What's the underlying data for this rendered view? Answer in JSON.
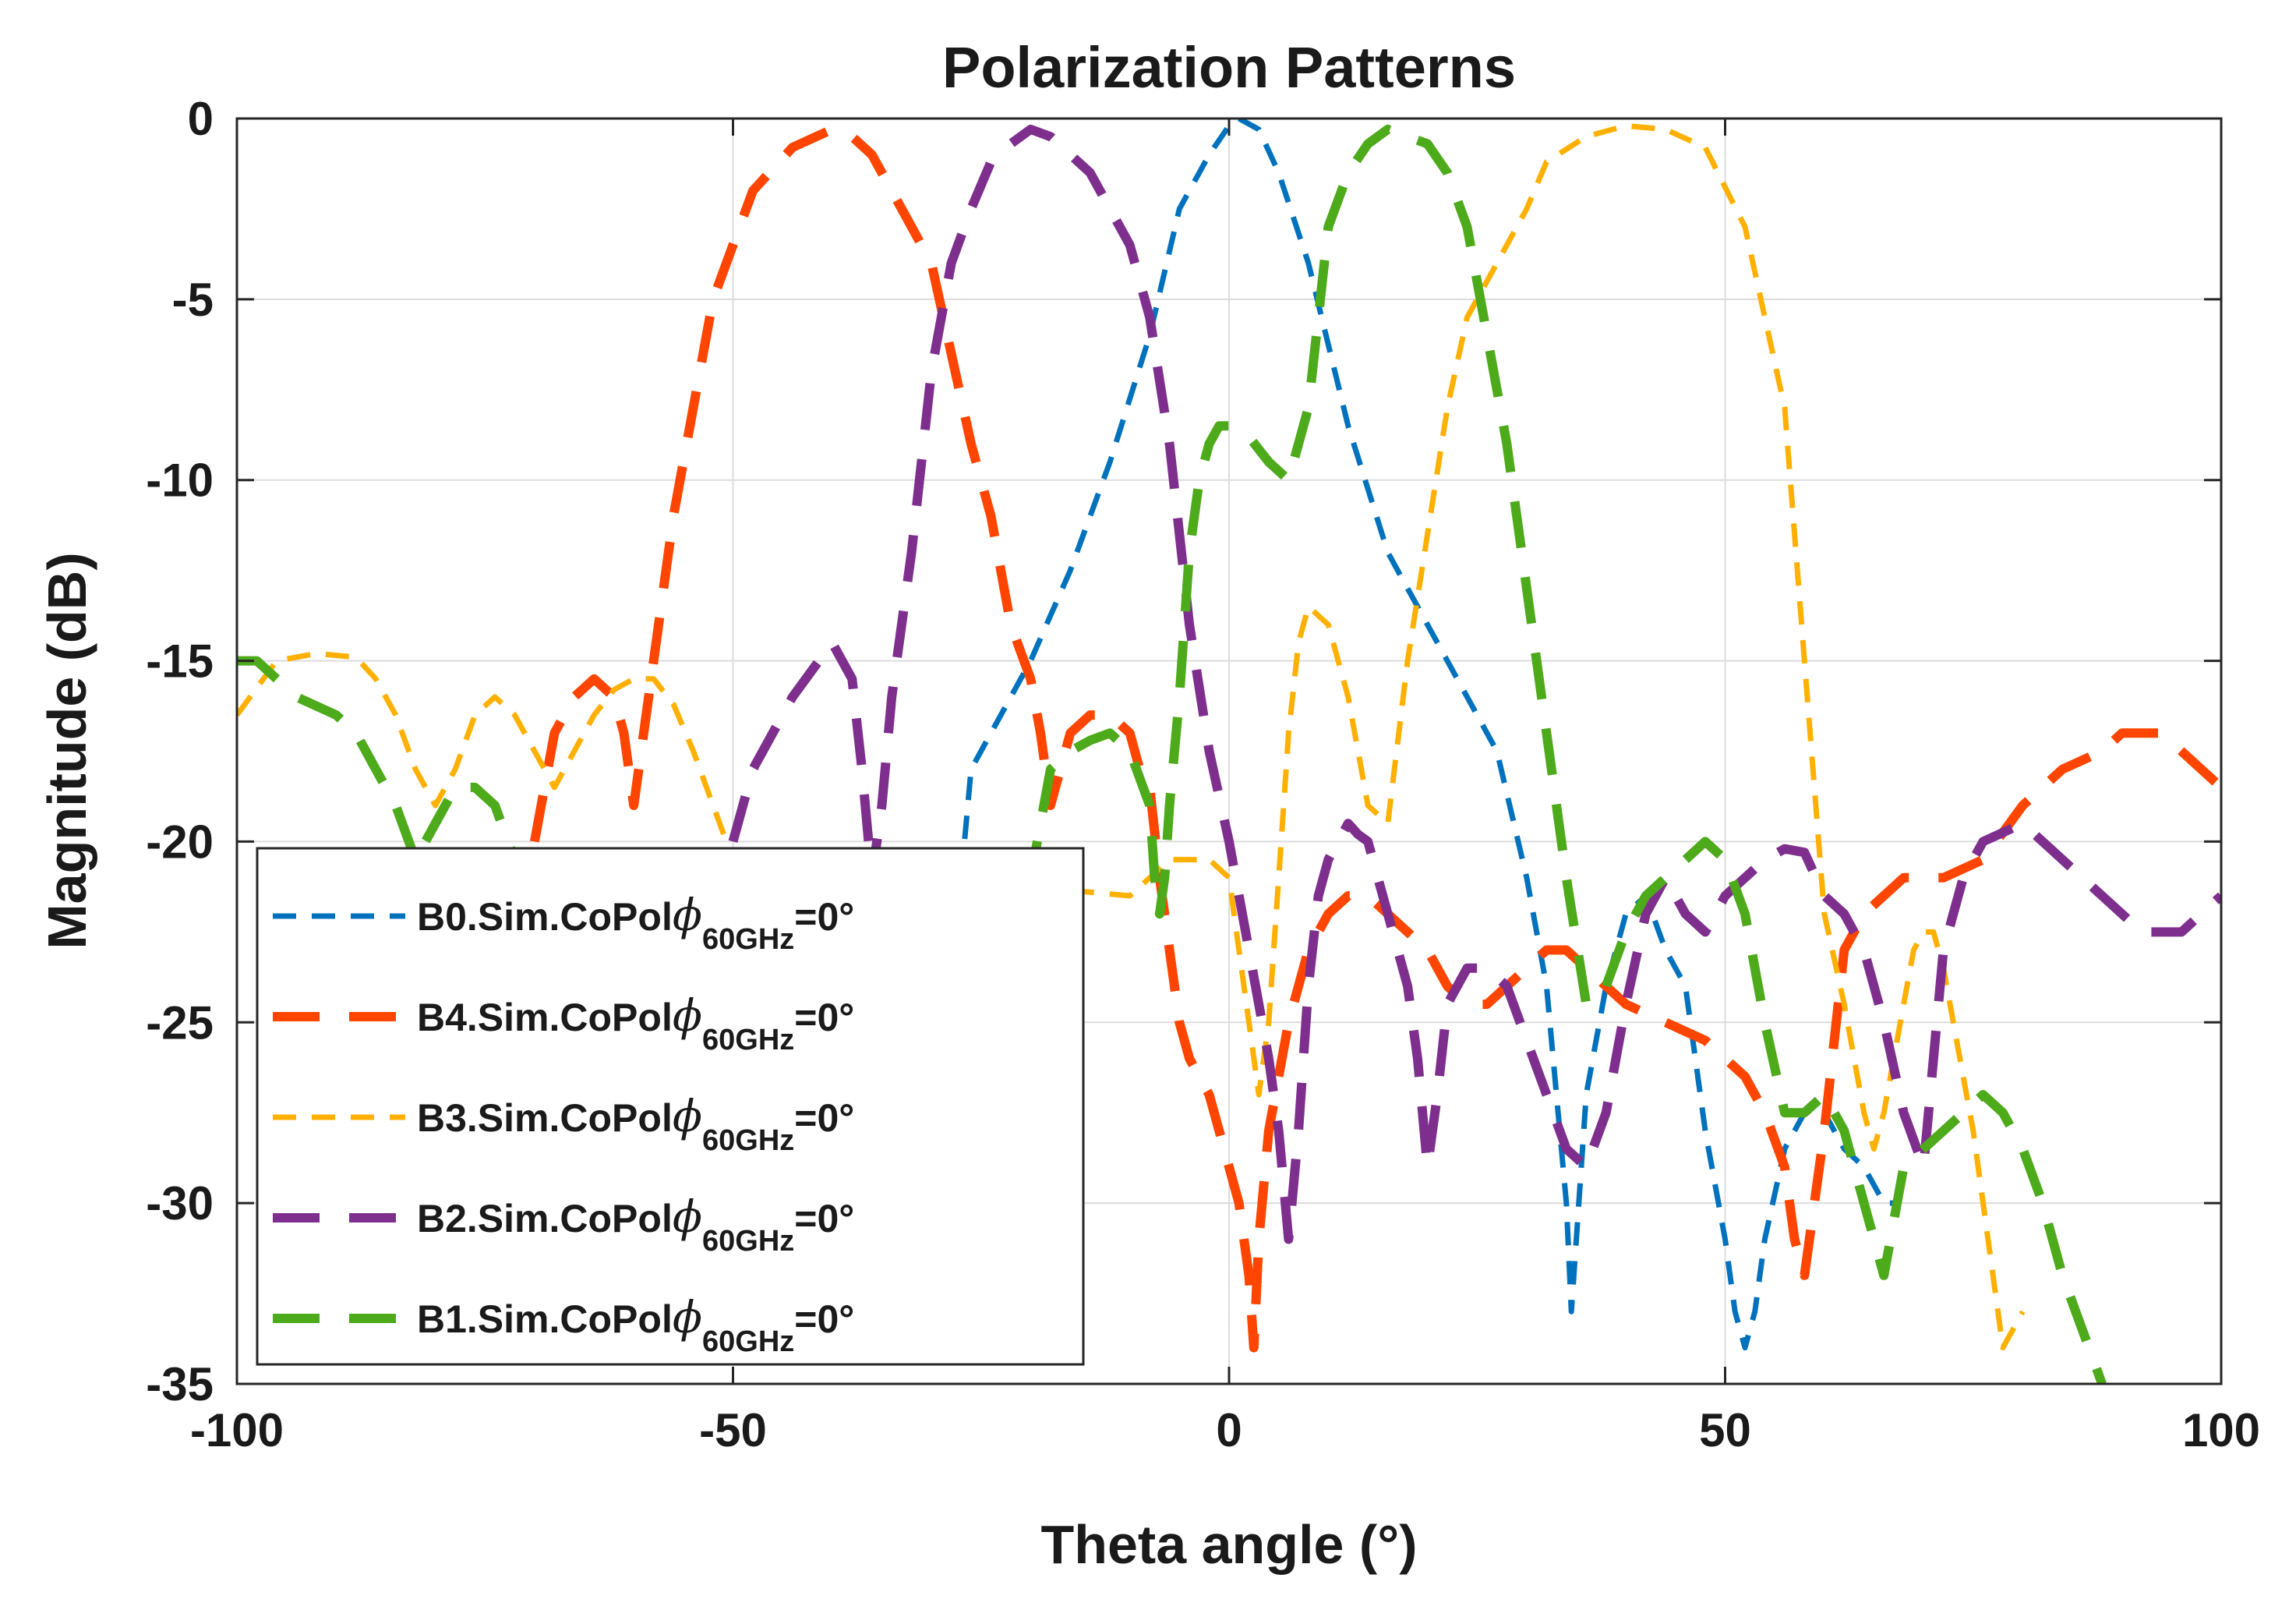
{
  "chart_data": {
    "type": "line",
    "title": "Polarization Patterns",
    "xlabel": "Theta angle (°)",
    "ylabel": "Magnitude (dB)",
    "xlim": [
      -100,
      100
    ],
    "ylim": [
      -35,
      0
    ],
    "xticks": [
      -100,
      -50,
      0,
      50,
      100
    ],
    "yticks": [
      0,
      -5,
      -10,
      -15,
      -20,
      -25,
      -30,
      -35
    ],
    "xtick_labels": [
      "-100",
      "-50",
      "0",
      "50",
      "100"
    ],
    "ytick_labels": [
      "0",
      "-5",
      "-10",
      "-15",
      "-20",
      "-25",
      "-30",
      "-35"
    ],
    "grid": true,
    "legend_position": "bottom-left",
    "series": [
      {
        "name": "B0.Sim.CoPolϕ60GHz=0°",
        "label_main": "B0.Sim.CoPol",
        "label_sub": "60GHz",
        "label_end": "=0°",
        "color": "#0072BD",
        "style": "short-dash",
        "x": [
          -27,
          -26,
          -24,
          -20,
          -16,
          -12,
          -8,
          -5,
          -2,
          0,
          1,
          3,
          5,
          8,
          12,
          16,
          20,
          24,
          27,
          30,
          32,
          33,
          34,
          34.5,
          35,
          36,
          38,
          40,
          42,
          44,
          46,
          48,
          50,
          51,
          52,
          53,
          54,
          56,
          58,
          60,
          62,
          64,
          66,
          67
        ],
        "y": [
          -21,
          -18,
          -17,
          -15,
          -12.5,
          -9.5,
          -6,
          -2.5,
          -1,
          -0.2,
          0,
          -0.3,
          -1.5,
          -4,
          -8.5,
          -12,
          -14,
          -16,
          -17.5,
          -21,
          -24,
          -27,
          -30,
          -33,
          -31,
          -27,
          -24,
          -22,
          -21.5,
          -23,
          -24,
          -28,
          -31,
          -33,
          -34,
          -33,
          -31,
          -28.5,
          -27.5,
          -27.5,
          -28.5,
          -29,
          -30,
          -30
        ]
      },
      {
        "name": "B4.Sim.CoPolϕ60GHz=0°",
        "label_main": "B4.Sim.CoPol",
        "label_sub": "60GHz",
        "label_end": "=0°",
        "color": "#FF4500",
        "style": "long-dash",
        "x": [
          -70,
          -68,
          -66,
          -64,
          -62,
          -61,
          -60,
          -59,
          -58,
          -56,
          -52,
          -48,
          -44,
          -40,
          -38,
          -36,
          -34,
          -30,
          -26,
          -24,
          -22,
          -20,
          -19,
          -18,
          -16,
          -14,
          -12,
          -10,
          -9,
          -8,
          -7,
          -6,
          -5,
          -4,
          -3,
          -2,
          -1,
          0,
          1,
          2,
          2.5,
          3,
          4,
          6,
          8,
          10,
          12,
          14,
          16,
          18,
          20,
          22,
          24,
          26,
          28,
          30,
          32,
          34,
          36,
          40,
          44,
          48,
          52,
          54,
          56,
          57,
          58,
          60,
          62,
          64,
          68,
          72,
          76,
          80,
          84,
          88,
          90,
          94,
          98,
          100
        ],
        "y": [
          -20,
          -17,
          -16,
          -15.5,
          -16,
          -17,
          -19,
          -17,
          -15,
          -11,
          -5,
          -2,
          -0.8,
          -0.3,
          -0.5,
          -1,
          -2,
          -4,
          -9,
          -11,
          -14,
          -15.5,
          -17,
          -19,
          -17,
          -16.5,
          -16.5,
          -17,
          -18,
          -18.5,
          -21,
          -23,
          -25,
          -26,
          -26.5,
          -27,
          -28,
          -29,
          -30,
          -32,
          -34,
          -31,
          -28,
          -25,
          -23,
          -22,
          -21.5,
          -21.5,
          -22,
          -22.5,
          -23,
          -24,
          -24.5,
          -24.5,
          -24,
          -23.5,
          -23,
          -23,
          -23.5,
          -24.5,
          -25,
          -25.5,
          -26.5,
          -27.5,
          -29,
          -31,
          -32,
          -28,
          -23,
          -22,
          -21,
          -21,
          -20.5,
          -19,
          -18,
          -17.5,
          -17,
          -17,
          -18,
          -18.5
        ]
      },
      {
        "name": "B3.Sim.CoPolϕ60GHz=0°",
        "label_main": "B3.Sim.CoPol",
        "label_sub": "60GHz",
        "label_end": "=0°",
        "color": "#FFB000",
        "style": "short-dash",
        "x": [
          -100,
          -96,
          -92,
          -88,
          -86,
          -84,
          -82,
          -80,
          -78,
          -76,
          -74,
          -72,
          -70,
          -68,
          -66,
          -64,
          -62,
          -60,
          -58,
          -56,
          -54,
          -52,
          -50,
          -10,
          -8,
          -6,
          -4,
          -2,
          0,
          1,
          2,
          3,
          4,
          5,
          6,
          7,
          8,
          10,
          12,
          14,
          16,
          18,
          20,
          22,
          24,
          26,
          28,
          30,
          32,
          36,
          40,
          44,
          48,
          52,
          56,
          58,
          60,
          62,
          63,
          64,
          65,
          66,
          67,
          68,
          69,
          70,
          71,
          72,
          73,
          74,
          75,
          76,
          77,
          78,
          79,
          80
        ],
        "y": [
          -16.5,
          -15,
          -14.8,
          -14.9,
          -15.5,
          -16.5,
          -18,
          -19,
          -18,
          -16.5,
          -16,
          -16.5,
          -17.5,
          -18.5,
          -17.5,
          -16.5,
          -15.8,
          -15.5,
          -15.5,
          -16.2,
          -17.5,
          -19,
          -20.5,
          -21.5,
          -21,
          -20.5,
          -20.5,
          -20.5,
          -21,
          -23,
          -25,
          -27,
          -25,
          -21,
          -17,
          -14.5,
          -13.5,
          -14,
          -16,
          -19,
          -19.5,
          -15,
          -11.5,
          -8,
          -5.5,
          -4.5,
          -3.5,
          -2.5,
          -1.2,
          -0.5,
          -0.2,
          -0.3,
          -0.8,
          -3,
          -8,
          -15,
          -22,
          -24.5,
          -26,
          -27.5,
          -28.5,
          -27.5,
          -26,
          -24.5,
          -23,
          -22.5,
          -22.5,
          -23.5,
          -25,
          -26.5,
          -28,
          -30,
          -32,
          -34,
          -33.5,
          -33
        ]
      },
      {
        "name": "B2.Sim.CoPolϕ60GHz=0°",
        "label_main": "B2.Sim.CoPol",
        "label_sub": "60GHz",
        "label_end": "=0°",
        "color": "#7E2F8E",
        "style": "long-dash",
        "x": [
          -50,
          -48,
          -44,
          -40,
          -38,
          -37,
          -36,
          -35,
          -34,
          -33,
          -32,
          -30,
          -28,
          -26,
          -24,
          -22,
          -20,
          -18,
          -14,
          -12,
          -10,
          -8,
          -6,
          -4,
          -2,
          0,
          2,
          4,
          5,
          6,
          7,
          8,
          9,
          10,
          11,
          12,
          13,
          14,
          15,
          16,
          17,
          18,
          19,
          20,
          21,
          22,
          24,
          26,
          28,
          30,
          32,
          34,
          36,
          38,
          40,
          42,
          44,
          46,
          48,
          50,
          52,
          54,
          56,
          58,
          60,
          62,
          64,
          66,
          68,
          70,
          72,
          74,
          76,
          80,
          84,
          88,
          92,
          96,
          100
        ],
        "y": [
          -20,
          -18,
          -16,
          -14.5,
          -15.5,
          -18,
          -21,
          -19,
          -16,
          -14,
          -12,
          -7,
          -4,
          -2.5,
          -1.2,
          -0.7,
          -0.3,
          -0.5,
          -1.5,
          -2.5,
          -3.5,
          -5.5,
          -9,
          -14,
          -17.5,
          -20,
          -23,
          -26,
          -28,
          -31,
          -28,
          -24,
          -21.5,
          -20.5,
          -20,
          -19.5,
          -19.8,
          -20,
          -21,
          -22,
          -23,
          -24,
          -26,
          -29,
          -27,
          -24.5,
          -23.5,
          -23.5,
          -24,
          -25.5,
          -27,
          -28.5,
          -29,
          -27.5,
          -24.5,
          -22,
          -21,
          -22,
          -22.5,
          -21.5,
          -21,
          -20.5,
          -20.2,
          -20.3,
          -21.5,
          -22,
          -23,
          -25,
          -27.5,
          -29,
          -23,
          -21,
          -20,
          -19.5,
          -20.5,
          -21.5,
          -22.5,
          -22.5,
          -21.5
        ]
      },
      {
        "name": "B1.Sim.CoPolϕ60GHz=0°",
        "label_main": "B1.Sim.CoPol",
        "label_sub": "60GHz",
        "label_end": "=0°",
        "color": "#4DAA1A",
        "style": "long-dash",
        "x": [
          -100,
          -98,
          -94,
          -90,
          -88,
          -86,
          -84,
          -82,
          -80,
          -78,
          -76,
          -74,
          -72,
          -70,
          -66,
          -62,
          -60,
          -58,
          -54,
          -48,
          -40,
          -32,
          -24,
          -20,
          -18,
          -16,
          -14,
          -12,
          -10,
          -8,
          -7.5,
          -7,
          -6.5,
          -6,
          -5,
          -4,
          -3,
          -2,
          -1,
          0,
          2,
          4,
          6,
          8,
          10,
          12,
          14,
          16,
          18,
          20,
          22,
          24,
          26,
          28,
          30,
          32,
          34,
          36,
          38,
          40,
          42,
          44,
          46,
          48,
          50,
          52,
          54,
          56,
          58,
          60,
          62,
          64,
          66,
          68,
          70,
          72,
          74,
          76,
          78,
          80,
          82,
          84,
          86,
          88
        ],
        "y": [
          -15,
          -15,
          -16,
          -16.5,
          -17,
          -18,
          -19,
          -20.5,
          -19.5,
          -18.5,
          -18.5,
          -19,
          -20.5,
          -22,
          -24,
          -25,
          -26,
          -27,
          -28,
          -29,
          -30,
          -30,
          -25,
          -21,
          -18,
          -17.5,
          -17.2,
          -17,
          -17.5,
          -19,
          -21,
          -22,
          -21,
          -19,
          -16,
          -12,
          -10,
          -9,
          -8.5,
          -8.5,
          -8.8,
          -9.5,
          -10,
          -8,
          -3,
          -1.5,
          -0.7,
          -0.3,
          -0.5,
          -0.7,
          -1.5,
          -3,
          -6,
          -9,
          -13,
          -17,
          -21,
          -24.5,
          -24,
          -22.5,
          -21.5,
          -21,
          -20.5,
          -20,
          -20.5,
          -22,
          -25,
          -27.5,
          -27.5,
          -27,
          -28,
          -30,
          -32,
          -29,
          -28.5,
          -28,
          -27.5,
          -27,
          -27.5,
          -28.5,
          -30,
          -32,
          -33.5,
          -35
        ]
      }
    ]
  }
}
